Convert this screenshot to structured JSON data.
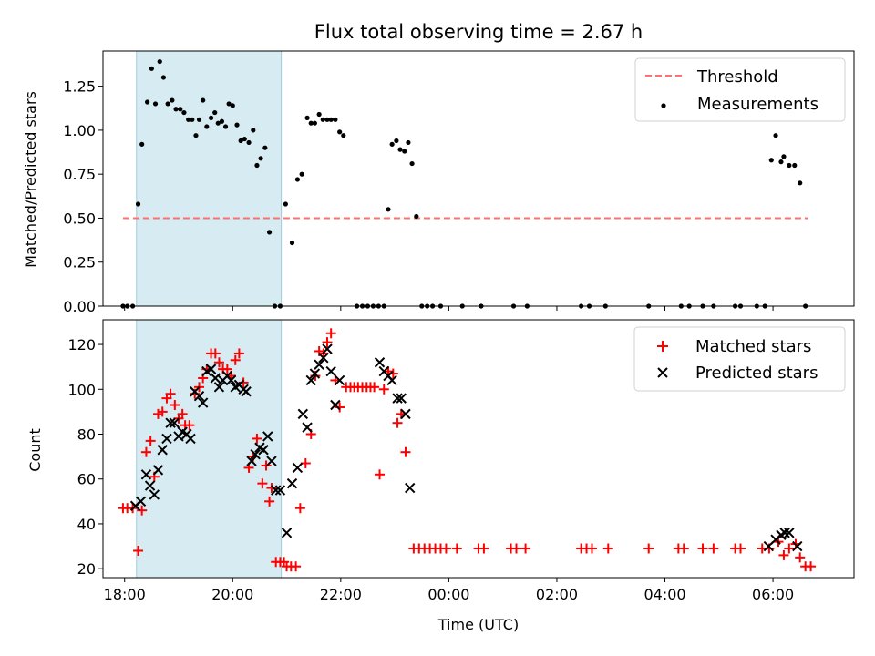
{
  "chart_data": [
    {
      "type": "scatter",
      "title": "Flux total observing time = 2.67 h",
      "xlabel": "",
      "ylabel": "Matched/Predicted stars",
      "xlim": [
        17.6,
        31.5
      ],
      "ylim": [
        0,
        1.45
      ],
      "x_ticks": [
        18,
        20,
        22,
        24,
        26,
        28,
        30
      ],
      "x_tick_labels_visible": false,
      "y_ticks": [
        0,
        0.25,
        0.5,
        0.75,
        1.0,
        1.25
      ],
      "y_tick_labels": [
        "0.00",
        "0.25",
        "0.50",
        "0.75",
        "1.00",
        "1.25"
      ],
      "observing_window": [
        18.22,
        20.9
      ],
      "threshold": {
        "name": "Threshold",
        "value": 0.5,
        "x_range": [
          17.97,
          30.65
        ],
        "color": "#ff7070"
      },
      "legend": {
        "placement": "top-right",
        "entries": [
          "Threshold",
          "Measurements"
        ]
      },
      "series": [
        {
          "name": "Measurements",
          "color": "#000000",
          "points": [
            [
              17.97,
              0
            ],
            [
              18.05,
              0
            ],
            [
              18.15,
              0
            ],
            [
              18.25,
              0.58
            ],
            [
              18.32,
              0.92
            ],
            [
              18.42,
              1.16
            ],
            [
              18.5,
              1.35
            ],
            [
              18.57,
              1.15
            ],
            [
              18.65,
              1.39
            ],
            [
              18.72,
              1.3
            ],
            [
              18.8,
              1.15
            ],
            [
              18.88,
              1.17
            ],
            [
              18.95,
              1.12
            ],
            [
              19.03,
              1.12
            ],
            [
              19.1,
              1.1
            ],
            [
              19.18,
              1.06
            ],
            [
              19.25,
              1.06
            ],
            [
              19.32,
              0.97
            ],
            [
              19.38,
              1.06
            ],
            [
              19.45,
              1.17
            ],
            [
              19.52,
              1.02
            ],
            [
              19.6,
              1.07
            ],
            [
              19.67,
              1.1
            ],
            [
              19.73,
              1.04
            ],
            [
              19.8,
              1.05
            ],
            [
              19.87,
              1.02
            ],
            [
              19.93,
              1.15
            ],
            [
              20.0,
              1.14
            ],
            [
              20.08,
              1.03
            ],
            [
              20.15,
              0.94
            ],
            [
              20.22,
              0.95
            ],
            [
              20.3,
              0.93
            ],
            [
              20.38,
              1.0
            ],
            [
              20.45,
              0.8
            ],
            [
              20.52,
              0.84
            ],
            [
              20.6,
              0.9
            ],
            [
              20.68,
              0.42
            ],
            [
              20.78,
              0
            ],
            [
              20.88,
              0
            ],
            [
              20.98,
              0.58
            ],
            [
              21.1,
              0.36
            ],
            [
              21.2,
              0.72
            ],
            [
              21.28,
              0.75
            ],
            [
              21.38,
              1.07
            ],
            [
              21.45,
              1.04
            ],
            [
              21.52,
              1.04
            ],
            [
              21.6,
              1.09
            ],
            [
              21.67,
              1.06
            ],
            [
              21.75,
              1.06
            ],
            [
              21.82,
              1.06
            ],
            [
              21.9,
              1.06
            ],
            [
              21.98,
              0.99
            ],
            [
              22.05,
              0.97
            ],
            [
              22.3,
              0
            ],
            [
              22.4,
              0
            ],
            [
              22.5,
              0
            ],
            [
              22.6,
              0
            ],
            [
              22.7,
              0
            ],
            [
              22.8,
              0
            ],
            [
              22.88,
              0.55
            ],
            [
              22.95,
              0.92
            ],
            [
              23.03,
              0.94
            ],
            [
              23.1,
              0.89
            ],
            [
              23.18,
              0.88
            ],
            [
              23.25,
              0.93
            ],
            [
              23.32,
              0.81
            ],
            [
              23.4,
              0.51
            ],
            [
              23.5,
              0
            ],
            [
              23.6,
              0
            ],
            [
              23.7,
              0
            ],
            [
              23.85,
              0
            ],
            [
              24.25,
              0
            ],
            [
              24.6,
              0
            ],
            [
              25.2,
              0
            ],
            [
              25.45,
              0
            ],
            [
              26.45,
              0
            ],
            [
              26.6,
              0
            ],
            [
              26.9,
              0
            ],
            [
              27.7,
              0
            ],
            [
              28.3,
              0
            ],
            [
              28.45,
              0
            ],
            [
              28.7,
              0
            ],
            [
              28.9,
              0
            ],
            [
              29.3,
              0
            ],
            [
              29.4,
              0
            ],
            [
              29.7,
              0
            ],
            [
              29.85,
              0
            ],
            [
              29.97,
              0.83
            ],
            [
              30.05,
              0.97
            ],
            [
              30.15,
              0.82
            ],
            [
              30.2,
              0.85
            ],
            [
              30.3,
              0.8
            ],
            [
              30.4,
              0.8
            ],
            [
              30.5,
              0.7
            ],
            [
              30.6,
              0
            ]
          ]
        }
      ]
    },
    {
      "type": "scatter",
      "title": "",
      "xlabel": "Time (UTC)",
      "ylabel": "Count",
      "xlim": [
        17.6,
        31.5
      ],
      "ylim": [
        16,
        131
      ],
      "x_ticks": [
        18,
        20,
        22,
        24,
        26,
        28,
        30
      ],
      "x_tick_labels": [
        "18:00",
        "20:00",
        "22:00",
        "00:00",
        "02:00",
        "04:00",
        "06:00"
      ],
      "y_ticks": [
        20,
        40,
        60,
        80,
        100,
        120
      ],
      "y_tick_labels": [
        "20",
        "40",
        "60",
        "80",
        "100",
        "120"
      ],
      "observing_window": [
        18.22,
        20.9
      ],
      "legend": {
        "placement": "top-right",
        "entries": [
          "Matched stars",
          "Predicted stars"
        ]
      },
      "series": [
        {
          "name": "Matched stars",
          "marker": "plus",
          "color": "#ff0000",
          "points": [
            [
              17.97,
              47
            ],
            [
              18.05,
              47
            ],
            [
              18.15,
              47
            ],
            [
              18.25,
              28
            ],
            [
              18.32,
              46
            ],
            [
              18.4,
              72
            ],
            [
              18.48,
              77
            ],
            [
              18.55,
              61
            ],
            [
              18.62,
              89
            ],
            [
              18.7,
              90
            ],
            [
              18.78,
              96
            ],
            [
              18.85,
              98
            ],
            [
              18.93,
              93
            ],
            [
              19.0,
              87
            ],
            [
              19.07,
              89
            ],
            [
              19.12,
              84
            ],
            [
              19.2,
              84
            ],
            [
              19.3,
              98
            ],
            [
              19.38,
              101
            ],
            [
              19.45,
              105
            ],
            [
              19.52,
              109
            ],
            [
              19.6,
              116
            ],
            [
              19.68,
              116
            ],
            [
              19.75,
              112
            ],
            [
              19.82,
              109
            ],
            [
              19.9,
              109
            ],
            [
              19.97,
              106
            ],
            [
              20.05,
              113
            ],
            [
              20.12,
              116
            ],
            [
              20.2,
              103
            ],
            [
              20.3,
              65
            ],
            [
              20.38,
              70
            ],
            [
              20.45,
              78
            ],
            [
              20.55,
              58
            ],
            [
              20.62,
              66
            ],
            [
              20.68,
              50
            ],
            [
              20.72,
              56
            ],
            [
              20.8,
              23
            ],
            [
              20.88,
              23
            ],
            [
              20.95,
              23
            ],
            [
              21.0,
              21
            ],
            [
              21.08,
              21
            ],
            [
              21.17,
              21
            ],
            [
              21.25,
              47
            ],
            [
              21.35,
              67
            ],
            [
              21.45,
              80
            ],
            [
              21.53,
              106
            ],
            [
              21.6,
              117
            ],
            [
              21.68,
              116
            ],
            [
              21.75,
              121
            ],
            [
              21.82,
              125
            ],
            [
              21.9,
              104
            ],
            [
              21.98,
              92
            ],
            [
              22.1,
              101
            ],
            [
              22.18,
              101
            ],
            [
              22.25,
              101
            ],
            [
              22.32,
              101
            ],
            [
              22.4,
              101
            ],
            [
              22.48,
              101
            ],
            [
              22.55,
              101
            ],
            [
              22.62,
              101
            ],
            [
              22.72,
              62
            ],
            [
              22.8,
              100
            ],
            [
              22.88,
              108
            ],
            [
              22.97,
              107
            ],
            [
              23.05,
              85
            ],
            [
              23.12,
              89
            ],
            [
              23.2,
              72
            ],
            [
              23.35,
              29
            ],
            [
              23.45,
              29
            ],
            [
              23.55,
              29
            ],
            [
              23.65,
              29
            ],
            [
              23.75,
              29
            ],
            [
              23.85,
              29
            ],
            [
              23.95,
              29
            ],
            [
              24.15,
              29
            ],
            [
              24.55,
              29
            ],
            [
              24.65,
              29
            ],
            [
              25.15,
              29
            ],
            [
              25.25,
              29
            ],
            [
              25.42,
              29
            ],
            [
              26.45,
              29
            ],
            [
              26.55,
              29
            ],
            [
              26.65,
              29
            ],
            [
              26.95,
              29
            ],
            [
              27.7,
              29
            ],
            [
              28.25,
              29
            ],
            [
              28.35,
              29
            ],
            [
              28.7,
              29
            ],
            [
              28.9,
              29
            ],
            [
              29.3,
              29
            ],
            [
              29.4,
              29
            ],
            [
              29.8,
              29
            ],
            [
              29.93,
              29
            ],
            [
              30.1,
              32
            ],
            [
              30.2,
              26
            ],
            [
              30.3,
              29
            ],
            [
              30.42,
              31
            ],
            [
              30.5,
              25
            ],
            [
              30.6,
              21
            ],
            [
              30.7,
              21
            ]
          ]
        },
        {
          "name": "Predicted stars",
          "marker": "x",
          "color": "#000000",
          "points": [
            [
              18.2,
              48
            ],
            [
              18.3,
              50
            ],
            [
              18.4,
              62
            ],
            [
              18.47,
              57
            ],
            [
              18.55,
              53
            ],
            [
              18.62,
              64
            ],
            [
              18.7,
              73
            ],
            [
              18.78,
              78
            ],
            [
              18.85,
              85
            ],
            [
              18.92,
              85
            ],
            [
              19.0,
              79
            ],
            [
              19.07,
              81
            ],
            [
              19.15,
              80
            ],
            [
              19.22,
              78
            ],
            [
              19.3,
              99
            ],
            [
              19.38,
              97
            ],
            [
              19.45,
              94
            ],
            [
              19.52,
              108
            ],
            [
              19.6,
              109
            ],
            [
              19.68,
              105
            ],
            [
              19.75,
              101
            ],
            [
              19.82,
              104
            ],
            [
              19.9,
              106
            ],
            [
              19.97,
              104
            ],
            [
              20.05,
              101
            ],
            [
              20.12,
              102
            ],
            [
              20.2,
              100
            ],
            [
              20.25,
              99
            ],
            [
              20.35,
              68
            ],
            [
              20.42,
              71
            ],
            [
              20.5,
              74
            ],
            [
              20.57,
              73
            ],
            [
              20.65,
              79
            ],
            [
              20.72,
              68
            ],
            [
              20.8,
              55
            ],
            [
              20.88,
              55
            ],
            [
              21.0,
              36
            ],
            [
              21.1,
              58
            ],
            [
              21.2,
              65
            ],
            [
              21.3,
              89
            ],
            [
              21.38,
              83
            ],
            [
              21.45,
              104
            ],
            [
              21.52,
              107
            ],
            [
              21.6,
              111
            ],
            [
              21.68,
              114
            ],
            [
              21.75,
              118
            ],
            [
              21.82,
              108
            ],
            [
              21.9,
              93
            ],
            [
              21.98,
              104
            ],
            [
              22.72,
              112
            ],
            [
              22.8,
              108
            ],
            [
              22.88,
              106
            ],
            [
              22.95,
              104
            ],
            [
              23.05,
              96
            ],
            [
              23.12,
              96
            ],
            [
              23.2,
              89
            ],
            [
              23.28,
              56
            ],
            [
              29.92,
              30
            ],
            [
              30.05,
              33
            ],
            [
              30.15,
              35
            ],
            [
              30.22,
              36
            ],
            [
              30.3,
              36
            ],
            [
              30.45,
              30
            ]
          ]
        }
      ]
    }
  ]
}
